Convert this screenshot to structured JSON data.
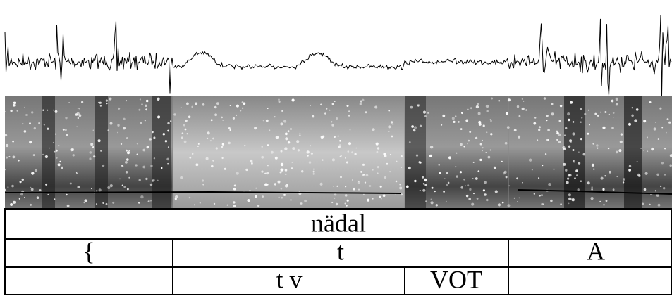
{
  "tiers": [
    {
      "intervals": [
        "nädal"
      ]
    },
    {
      "intervals": [
        "{",
        "t",
        "A"
      ]
    },
    {
      "intervals": [
        "t v",
        "VOT"
      ]
    }
  ]
}
